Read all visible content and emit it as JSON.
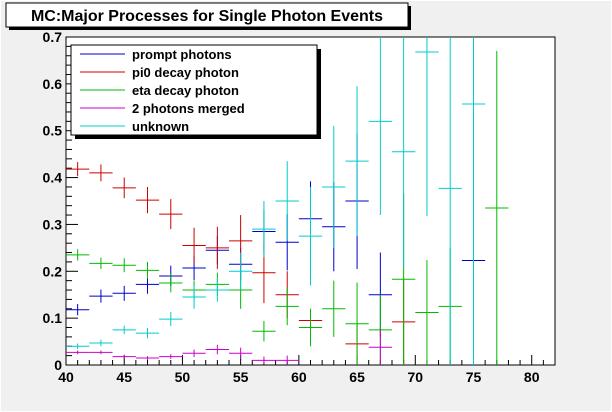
{
  "chart_data": {
    "type": "scatter",
    "title": "MC:Major Processes for Single Photon Events",
    "xlabel": "",
    "ylabel": "",
    "xlim": [
      40,
      82
    ],
    "ylim": [
      0,
      0.7
    ],
    "x_ticks": [
      "40",
      "45",
      "50",
      "55",
      "60",
      "65",
      "70",
      "75",
      "80"
    ],
    "y_ticks": [
      "0",
      "0.1",
      "0.2",
      "0.3",
      "0.4",
      "0.5",
      "0.6",
      "0.7"
    ],
    "grid": false,
    "legend_position": "top-left",
    "x_bin_halfwidth": 1,
    "series": [
      {
        "name": "prompt photons",
        "color": "#0000cc",
        "points": [
          {
            "x": 41,
            "y": 0.118,
            "err": 0.012
          },
          {
            "x": 43,
            "y": 0.147,
            "err": 0.014
          },
          {
            "x": 45,
            "y": 0.153,
            "err": 0.016
          },
          {
            "x": 47,
            "y": 0.172,
            "err": 0.02
          },
          {
            "x": 49,
            "y": 0.19,
            "err": 0.022
          },
          {
            "x": 51,
            "y": 0.207,
            "err": 0.026
          },
          {
            "x": 53,
            "y": 0.245,
            "err": 0.03
          },
          {
            "x": 55,
            "y": 0.215,
            "err": 0.035
          },
          {
            "x": 57,
            "y": 0.285,
            "err": 0.045
          },
          {
            "x": 59,
            "y": 0.262,
            "err": 0.06
          },
          {
            "x": 61,
            "y": 0.312,
            "err": 0.08
          },
          {
            "x": 63,
            "y": 0.295,
            "err": 0.095
          },
          {
            "x": 65,
            "y": 0.35,
            "err": 0.145
          },
          {
            "x": 67,
            "y": 0.15,
            "err": 0.09
          },
          {
            "x": 75,
            "y": 0.223,
            "err": 0.21
          }
        ]
      },
      {
        "name": "pi0 decay photon",
        "color": "#cc0000",
        "points": [
          {
            "x": 41,
            "y": 0.418,
            "err": 0.015
          },
          {
            "x": 43,
            "y": 0.41,
            "err": 0.018
          },
          {
            "x": 45,
            "y": 0.378,
            "err": 0.022
          },
          {
            "x": 47,
            "y": 0.352,
            "err": 0.028
          },
          {
            "x": 49,
            "y": 0.322,
            "err": 0.032
          },
          {
            "x": 51,
            "y": 0.255,
            "err": 0.038
          },
          {
            "x": 53,
            "y": 0.25,
            "err": 0.045
          },
          {
            "x": 55,
            "y": 0.265,
            "err": 0.055
          },
          {
            "x": 57,
            "y": 0.197,
            "err": 0.065
          },
          {
            "x": 59,
            "y": 0.15,
            "err": 0.05
          },
          {
            "x": 61,
            "y": 0.095,
            "err": 0.025
          },
          {
            "x": 65,
            "y": 0.045,
            "err": 0.045
          },
          {
            "x": 69,
            "y": 0.092,
            "err": 0.092
          }
        ]
      },
      {
        "name": "eta decay photon",
        "color": "#00bb00",
        "points": [
          {
            "x": 41,
            "y": 0.235,
            "err": 0.012
          },
          {
            "x": 43,
            "y": 0.217,
            "err": 0.012
          },
          {
            "x": 45,
            "y": 0.213,
            "err": 0.015
          },
          {
            "x": 47,
            "y": 0.202,
            "err": 0.018
          },
          {
            "x": 49,
            "y": 0.175,
            "err": 0.02
          },
          {
            "x": 51,
            "y": 0.16,
            "err": 0.02
          },
          {
            "x": 53,
            "y": 0.172,
            "err": 0.025
          },
          {
            "x": 55,
            "y": 0.16,
            "err": 0.04
          },
          {
            "x": 57,
            "y": 0.072,
            "err": 0.022
          },
          {
            "x": 59,
            "y": 0.125,
            "err": 0.04
          },
          {
            "x": 61,
            "y": 0.08,
            "err": 0.04
          },
          {
            "x": 63,
            "y": 0.12,
            "err": 0.06
          },
          {
            "x": 65,
            "y": 0.088,
            "err": 0.088
          },
          {
            "x": 67,
            "y": 0.075,
            "err": 0.075
          },
          {
            "x": 69,
            "y": 0.183,
            "err": 0.183
          },
          {
            "x": 71,
            "y": 0.112,
            "err": 0.112
          },
          {
            "x": 73,
            "y": 0.125,
            "err": 0.125
          },
          {
            "x": 77,
            "y": 0.335,
            "err": 0.335
          }
        ]
      },
      {
        "name": "2 photons merged",
        "color": "#cc00cc",
        "points": [
          {
            "x": 41,
            "y": 0.027,
            "err": 0.004
          },
          {
            "x": 43,
            "y": 0.027,
            "err": 0.004
          },
          {
            "x": 45,
            "y": 0.018,
            "err": 0.004
          },
          {
            "x": 47,
            "y": 0.015,
            "err": 0.004
          },
          {
            "x": 49,
            "y": 0.018,
            "err": 0.005
          },
          {
            "x": 51,
            "y": 0.025,
            "err": 0.008
          },
          {
            "x": 53,
            "y": 0.033,
            "err": 0.01
          },
          {
            "x": 55,
            "y": 0.025,
            "err": 0.012
          },
          {
            "x": 57,
            "y": 0.01,
            "err": 0.008
          },
          {
            "x": 59,
            "y": 0.01,
            "err": 0.01
          },
          {
            "x": 67,
            "y": 0.038,
            "err": 0.038
          }
        ]
      },
      {
        "name": "unknown",
        "color": "#00cccc",
        "points": [
          {
            "x": 41,
            "y": 0.04,
            "err": 0.006
          },
          {
            "x": 43,
            "y": 0.047,
            "err": 0.007
          },
          {
            "x": 45,
            "y": 0.075,
            "err": 0.009
          },
          {
            "x": 47,
            "y": 0.068,
            "err": 0.011
          },
          {
            "x": 49,
            "y": 0.098,
            "err": 0.015
          },
          {
            "x": 51,
            "y": 0.145,
            "err": 0.025
          },
          {
            "x": 53,
            "y": 0.16,
            "err": 0.025
          },
          {
            "x": 55,
            "y": 0.2,
            "err": 0.04
          },
          {
            "x": 57,
            "y": 0.29,
            "err": 0.06
          },
          {
            "x": 59,
            "y": 0.35,
            "err": 0.085
          },
          {
            "x": 61,
            "y": 0.275,
            "err": 0.105
          },
          {
            "x": 63,
            "y": 0.38,
            "err": 0.13
          },
          {
            "x": 65,
            "y": 0.435,
            "err": 0.16
          },
          {
            "x": 67,
            "y": 0.52,
            "err": 0.2
          },
          {
            "x": 69,
            "y": 0.455,
            "err": 0.245
          },
          {
            "x": 71,
            "y": 0.668,
            "err": 0.35
          },
          {
            "x": 73,
            "y": 0.377,
            "err": 0.377
          },
          {
            "x": 75,
            "y": 0.557,
            "err": 0.557
          }
        ]
      }
    ]
  }
}
